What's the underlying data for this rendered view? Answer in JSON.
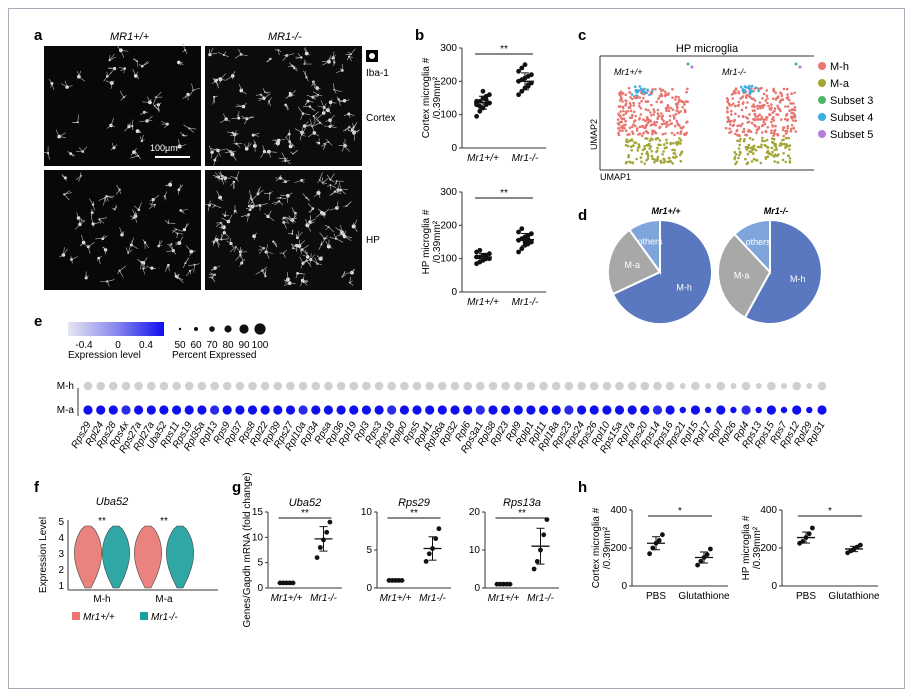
{
  "panel_labels": {
    "a": "a",
    "b": "b",
    "c": "c",
    "d": "d",
    "e": "e",
    "f": "f",
    "g": "g",
    "h": "h"
  },
  "panel_a": {
    "col_left": "MR1+/+",
    "col_right": "MR1-/-",
    "marker": "Iba-1",
    "row_top": "Cortex",
    "row_bottom": "HP",
    "scale_bar": "100μm"
  },
  "panel_b": {
    "chart_data": [
      {
        "type": "scatter",
        "ylabel": "Cortex microglia # /0.39mm²",
        "categories": [
          "Mr1+/+",
          "Mr1-/-"
        ],
        "ylim": [
          0,
          300
        ],
        "yticks": [
          0,
          100,
          200,
          300
        ],
        "values": [
          [
            95,
            110,
            120,
            130,
            135,
            140,
            140,
            150,
            155,
            160,
            130,
            125,
            170,
            145
          ],
          [
            160,
            170,
            180,
            190,
            195,
            200,
            205,
            210,
            215,
            220,
            230,
            240,
            250,
            185
          ]
        ],
        "means": [
          136,
          200
        ],
        "sig": "**"
      },
      {
        "type": "scatter",
        "ylabel": "HP microglia # /0.39mm²",
        "categories": [
          "Mr1+/+",
          "Mr1-/-"
        ],
        "ylim": [
          0,
          300
        ],
        "yticks": [
          0,
          100,
          200,
          300
        ],
        "values": [
          [
            85,
            90,
            95,
            100,
            100,
            105,
            105,
            110,
            110,
            115,
            120,
            125,
            95,
            102
          ],
          [
            120,
            130,
            140,
            145,
            150,
            155,
            160,
            165,
            170,
            175,
            180,
            190,
            150,
            158
          ]
        ],
        "means": [
          105,
          157
        ],
        "sig": "**"
      }
    ]
  },
  "panel_c": {
    "title": "HP microglia",
    "left_label": "Mr1+/+",
    "right_label": "Mr1-/-",
    "xlabel": "UMAP1",
    "ylabel": "UMAP2",
    "legend": [
      {
        "name": "M-h",
        "color": "#e8756f"
      },
      {
        "name": "M-a",
        "color": "#a3a534"
      },
      {
        "name": "Subset 3",
        "color": "#4fb76a"
      },
      {
        "name": "Subset 4",
        "color": "#3aaee3"
      },
      {
        "name": "Subset 5",
        "color": "#b37ddc"
      }
    ]
  },
  "panel_d": {
    "chart_data": [
      {
        "type": "pie",
        "title": "Mr1+/+",
        "slices": [
          {
            "name": "M-h",
            "value": 68,
            "color": "#5a78c0"
          },
          {
            "name": "M-a",
            "value": 22,
            "color": "#a8a8a8"
          },
          {
            "name": "others",
            "value": 10,
            "color": "#7ea6dc"
          }
        ]
      },
      {
        "type": "pie",
        "title": "Mr1-/-",
        "slices": [
          {
            "name": "M-h",
            "value": 58,
            "color": "#5a78c0"
          },
          {
            "name": "M-a",
            "value": 30,
            "color": "#a8a8a8"
          },
          {
            "name": "others",
            "value": 12,
            "color": "#7ea6dc"
          }
        ]
      }
    ]
  },
  "panel_e": {
    "legend_ticks": [
      "-0.4",
      "0",
      "0.4"
    ],
    "legend_title": "Expression level",
    "size_ticks": [
      "50",
      "60",
      "70",
      "80",
      "90",
      "100"
    ],
    "size_title": "Percent Expressed",
    "rows": [
      "M-h",
      "M-a"
    ],
    "genes": [
      "Rps29",
      "Rpl24",
      "Rps28",
      "Rps4x",
      "Rps27a",
      "Rpl27a",
      "Uba52",
      "Rps11",
      "Rps19",
      "Rpl35a",
      "Rpl13",
      "Rps9",
      "Rpl37",
      "Rps8",
      "Rpl22",
      "Rpl39",
      "Rps27",
      "Rpl10a",
      "Rpl34",
      "Rpsa",
      "Rpl36",
      "Rpl19",
      "Rpl3",
      "Rps3",
      "Rps18",
      "Rplp0",
      "Rps5",
      "Rpl41",
      "Rpl36a",
      "Rpl32",
      "Rpl6",
      "Rps3a1",
      "Rpl38",
      "Rpl23",
      "Rpl9",
      "Rplp1",
      "Rpl11",
      "Rpl18a",
      "Rps23",
      "Rps24",
      "Rps26",
      "Rpl10",
      "Rps15a",
      "Rpl7a",
      "Rps20",
      "Rps14",
      "Rps16",
      "Rps21",
      "Rpl15",
      "Rpl17",
      "Rpl7",
      "Rpl26",
      "Rpl4",
      "Rps13",
      "Rps15",
      "Rps7",
      "Rps12",
      "Rpl29",
      "Rpl31"
    ]
  },
  "panel_f": {
    "gene": "Uba52",
    "ylabel": "Expression Level",
    "yticks": [
      "1",
      "2",
      "3",
      "4",
      "5"
    ],
    "groups": [
      "M-h",
      "M-a"
    ],
    "sig": "**",
    "legend": [
      {
        "name": "Mr1+/+",
        "color": "#e8756f"
      },
      {
        "name": "Mr1-/-",
        "color": "#1a9e9e"
      }
    ]
  },
  "panel_g": {
    "ylabel": "Genes/Gapdh mRNA (fold change)",
    "chart_data": [
      {
        "type": "scatter",
        "title": "Uba52",
        "categories": [
          "Mr1+/+",
          "Mr1-/-"
        ],
        "ylim": [
          0,
          15
        ],
        "yticks": [
          0,
          5,
          10,
          15
        ],
        "values": [
          [
            1,
            1,
            1,
            1,
            1
          ],
          [
            6,
            8,
            9.5,
            11,
            13
          ]
        ],
        "means": [
          1,
          9.7
        ],
        "sig": "**"
      },
      {
        "type": "scatter",
        "title": "Rps29",
        "categories": [
          "Mr1+/+",
          "Mr1-/-"
        ],
        "ylim": [
          0,
          10
        ],
        "yticks": [
          0,
          5,
          10
        ],
        "values": [
          [
            1,
            1,
            1,
            1,
            1
          ],
          [
            3.5,
            4.5,
            5.2,
            6.5,
            7.8
          ]
        ],
        "means": [
          1,
          5.2
        ],
        "sig": "**"
      },
      {
        "type": "scatter",
        "title": "Rps13a",
        "categories": [
          "Mr1+/+",
          "Mr1-/-"
        ],
        "ylim": [
          0,
          20
        ],
        "yticks": [
          0,
          10,
          20
        ],
        "values": [
          [
            1,
            1,
            1,
            1,
            1
          ],
          [
            5,
            7,
            10,
            14,
            18
          ]
        ],
        "means": [
          1,
          11
        ],
        "sig": "**"
      }
    ]
  },
  "panel_h": {
    "chart_data": [
      {
        "type": "scatter",
        "ylabel": "Cortex microglia # /0.39mm²",
        "categories": [
          "PBS",
          "Glutathione"
        ],
        "ylim": [
          0,
          400
        ],
        "yticks": [
          0,
          200,
          400
        ],
        "values": [
          [
            170,
            200,
            225,
            240,
            270
          ],
          [
            110,
            130,
            150,
            165,
            195
          ]
        ],
        "means": [
          225,
          150
        ],
        "sig": "*"
      },
      {
        "type": "scatter",
        "ylabel": "HP microglia # /0.39mm²",
        "categories": [
          "PBS",
          "Glutathione"
        ],
        "ylim": [
          0,
          400
        ],
        "yticks": [
          0,
          200,
          400
        ],
        "values": [
          [
            225,
            235,
            255,
            275,
            305
          ],
          [
            175,
            185,
            195,
            205,
            215
          ]
        ],
        "means": [
          255,
          195
        ],
        "sig": "*"
      }
    ]
  }
}
